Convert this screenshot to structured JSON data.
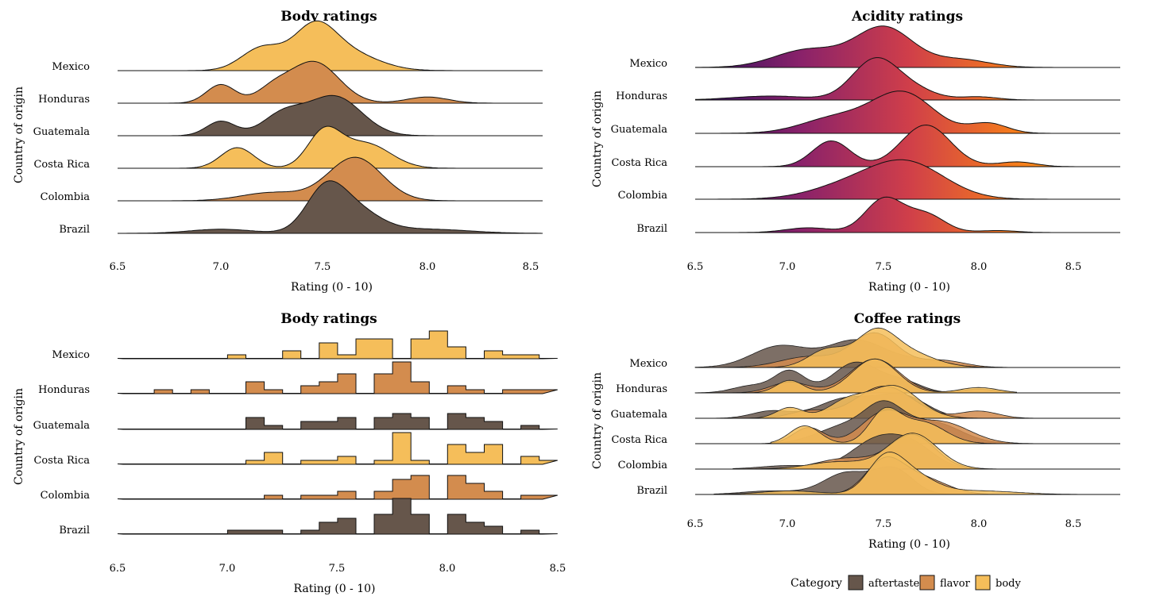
{
  "chart_data": [
    {
      "type": "ridgeline",
      "title": "Body ratings",
      "xlabel": "Rating (0 - 10)",
      "ylabel": "Country of origin",
      "xlim": [
        6.5,
        8.55
      ],
      "x_ticks": [
        "6.5",
        "7.0",
        "7.5",
        "8.0",
        "8.5"
      ],
      "categories": [
        "Mexico",
        "Honduras",
        "Guatemala",
        "Costa Rica",
        "Colombia",
        "Brazil"
      ],
      "fill_colors": [
        "#f5be5a",
        "#d38c4e",
        "#66564b",
        "#f5be5a",
        "#d38c4e",
        "#66564b"
      ],
      "series": [
        {
          "category": "Mexico",
          "peaks": [
            [
              7.2,
              0.1,
              0.55
            ],
            [
              7.45,
              0.1,
              0.9
            ],
            [
              7.6,
              0.15,
              0.45
            ]
          ],
          "range": [
            6.5,
            8.55
          ]
        },
        {
          "category": "Honduras",
          "peaks": [
            [
              7.0,
              0.07,
              0.45
            ],
            [
              7.45,
              0.12,
              1.0
            ],
            [
              7.25,
              0.08,
              0.3
            ],
            [
              8.0,
              0.1,
              0.15
            ]
          ],
          "range": [
            6.5,
            8.55
          ]
        },
        {
          "category": "Guatemala",
          "peaks": [
            [
              7.0,
              0.07,
              0.35
            ],
            [
              7.3,
              0.1,
              0.5
            ],
            [
              7.55,
              0.13,
              0.95
            ]
          ],
          "range": [
            6.5,
            8.55
          ]
        },
        {
          "category": "Costa Rica",
          "peaks": [
            [
              7.08,
              0.08,
              0.5
            ],
            [
              7.5,
              0.08,
              0.85
            ],
            [
              7.7,
              0.12,
              0.6
            ]
          ],
          "range": [
            6.5,
            8.55
          ]
        },
        {
          "category": "Colombia",
          "peaks": [
            [
              7.25,
              0.15,
              0.2
            ],
            [
              7.65,
              0.13,
              1.05
            ]
          ],
          "range": [
            6.5,
            8.55
          ]
        },
        {
          "category": "Brazil",
          "peaks": [
            [
              7.0,
              0.15,
              0.1
            ],
            [
              7.5,
              0.09,
              0.8
            ],
            [
              7.62,
              0.13,
              0.65
            ],
            [
              8.0,
              0.2,
              0.1
            ]
          ],
          "range": [
            6.5,
            8.55
          ]
        }
      ]
    },
    {
      "type": "ridgeline",
      "title": "Acidity ratings",
      "xlabel": "Rating (0 - 10)",
      "ylabel": "Country of origin",
      "xlim": [
        6.5,
        8.75
      ],
      "x_ticks": [
        "6.5",
        "7.0",
        "7.5",
        "8.0",
        "8.5"
      ],
      "categories": [
        "Mexico",
        "Honduras",
        "Guatemala",
        "Costa Rica",
        "Colombia",
        "Brazil"
      ],
      "gradient": [
        "#2d0f5e",
        "#8a226a",
        "#cf3e4a",
        "#f57c1c",
        "#f9a91a"
      ],
      "series": [
        {
          "category": "Mexico",
          "peaks": [
            [
              7.1,
              0.18,
              0.45
            ],
            [
              7.5,
              0.15,
              1.0
            ],
            [
              7.9,
              0.15,
              0.2
            ]
          ],
          "range": [
            6.5,
            8.75
          ]
        },
        {
          "category": "Honduras",
          "peaks": [
            [
              6.9,
              0.2,
              0.1
            ],
            [
              7.45,
              0.12,
              1.0
            ],
            [
              7.65,
              0.12,
              0.25
            ],
            [
              8.0,
              0.1,
              0.08
            ]
          ],
          "range": [
            6.5,
            8.75
          ]
        },
        {
          "category": "Guatemala",
          "peaks": [
            [
              7.25,
              0.18,
              0.4
            ],
            [
              7.6,
              0.16,
              1.0
            ],
            [
              8.05,
              0.1,
              0.25
            ]
          ],
          "range": [
            6.5,
            8.75
          ]
        },
        {
          "category": "Costa Rica",
          "peaks": [
            [
              7.22,
              0.1,
              0.65
            ],
            [
              7.72,
              0.13,
              1.05
            ],
            [
              8.2,
              0.1,
              0.12
            ]
          ],
          "range": [
            6.5,
            8.75
          ]
        },
        {
          "category": "Colombia",
          "peaks": [
            [
              7.3,
              0.2,
              0.3
            ],
            [
              7.62,
              0.2,
              0.9
            ]
          ],
          "range": [
            6.5,
            8.75
          ]
        },
        {
          "category": "Brazil",
          "peaks": [
            [
              7.1,
              0.12,
              0.12
            ],
            [
              7.5,
              0.1,
              0.85
            ],
            [
              7.72,
              0.1,
              0.45
            ],
            [
              8.1,
              0.1,
              0.05
            ]
          ],
          "range": [
            6.5,
            8.75
          ]
        }
      ]
    },
    {
      "type": "ridgeline-histogram",
      "title": "Body ratings",
      "xlabel": "Rating (0 - 10)",
      "ylabel": "Country of origin",
      "xlim": [
        6.5,
        8.5
      ],
      "x_ticks": [
        "6.5",
        "7.0",
        "7.5",
        "8.0",
        "8.5"
      ],
      "bin_start": 6.5,
      "bin_width": 0.0833,
      "categories": [
        "Mexico",
        "Honduras",
        "Guatemala",
        "Costa Rica",
        "Colombia",
        "Brazil"
      ],
      "fill_colors": [
        "#f5be5a",
        "#d38c4e",
        "#66564b",
        "#f5be5a",
        "#d38c4e",
        "#66564b"
      ],
      "series": [
        {
          "category": "Mexico",
          "counts": [
            0,
            0,
            0,
            0,
            0,
            0,
            1,
            0,
            0,
            2,
            0,
            4,
            1,
            5,
            5,
            0,
            5,
            7,
            3,
            0,
            2,
            1,
            1,
            0
          ]
        },
        {
          "category": "Honduras",
          "counts": [
            0,
            0,
            1,
            0,
            1,
            0,
            0,
            3,
            1,
            0,
            2,
            3,
            5,
            0,
            5,
            8,
            3,
            0,
            2,
            1,
            0,
            1,
            1,
            1
          ]
        },
        {
          "category": "Guatemala",
          "counts": [
            0,
            0,
            0,
            0,
            0,
            0,
            0,
            3,
            1,
            0,
            2,
            2,
            3,
            0,
            3,
            4,
            3,
            0,
            4,
            3,
            2,
            0,
            1,
            0
          ]
        },
        {
          "category": "Costa Rica",
          "counts": [
            0,
            0,
            0,
            0,
            0,
            0,
            0,
            1,
            3,
            0,
            1,
            1,
            2,
            0,
            1,
            8,
            1,
            0,
            5,
            3,
            5,
            0,
            2,
            1
          ]
        },
        {
          "category": "Colombia",
          "counts": [
            0,
            0,
            0,
            0,
            0,
            0,
            0,
            0,
            1,
            0,
            1,
            1,
            2,
            0,
            2,
            5,
            6,
            0,
            6,
            4,
            2,
            0,
            1,
            1
          ]
        },
        {
          "category": "Brazil",
          "counts": [
            0,
            0,
            0,
            0,
            0,
            0,
            1,
            1,
            1,
            0,
            1,
            3,
            4,
            0,
            5,
            9,
            5,
            0,
            5,
            3,
            2,
            0,
            1,
            0
          ]
        }
      ]
    },
    {
      "type": "ridgeline",
      "title": "Coffee ratings",
      "xlabel": "Rating (0 - 10)",
      "ylabel": "Country of origin",
      "xlim": [
        6.5,
        8.75
      ],
      "x_ticks": [
        "6.5",
        "7.0",
        "7.5",
        "8.0",
        "8.5"
      ],
      "categories": [
        "Mexico",
        "Honduras",
        "Guatemala",
        "Costa Rica",
        "Colombia",
        "Brazil"
      ],
      "legend": {
        "title": "Category",
        "position": "bottom"
      },
      "groups": [
        {
          "name": "aftertaste",
          "color": "#66564b"
        },
        {
          "name": "flavor",
          "color": "#d38c4e"
        },
        {
          "name": "body",
          "color": "#f5be5a"
        }
      ],
      "series": [
        {
          "category": "Mexico",
          "group": "aftertaste",
          "peaks": [
            [
              6.95,
              0.15,
              0.6
            ],
            [
              7.35,
              0.15,
              0.75
            ],
            [
              7.7,
              0.15,
              0.2
            ]
          ],
          "range": [
            6.5,
            8.3
          ]
        },
        {
          "category": "Mexico",
          "group": "flavor",
          "peaks": [
            [
              7.1,
              0.15,
              0.3
            ],
            [
              7.45,
              0.12,
              0.95
            ],
            [
              7.8,
              0.12,
              0.2
            ]
          ],
          "range": [
            6.5,
            8.3
          ]
        },
        {
          "category": "Mexico",
          "group": "body",
          "peaks": [
            [
              7.2,
              0.1,
              0.5
            ],
            [
              7.45,
              0.1,
              0.8
            ],
            [
              7.6,
              0.15,
              0.45
            ]
          ],
          "range": [
            6.7,
            8.1
          ]
        },
        {
          "category": "Honduras",
          "group": "aftertaste",
          "peaks": [
            [
              6.8,
              0.1,
              0.2
            ],
            [
              7.0,
              0.08,
              0.6
            ],
            [
              7.35,
              0.12,
              0.85
            ],
            [
              7.6,
              0.1,
              0.3
            ]
          ],
          "range": [
            6.5,
            8.0
          ]
        },
        {
          "category": "Honduras",
          "group": "flavor",
          "peaks": [
            [
              7.0,
              0.1,
              0.3
            ],
            [
              7.45,
              0.13,
              0.95
            ],
            [
              8.0,
              0.1,
              0.1
            ]
          ],
          "range": [
            6.5,
            8.2
          ]
        },
        {
          "category": "Honduras",
          "group": "body",
          "peaks": [
            [
              7.0,
              0.07,
              0.35
            ],
            [
              7.45,
              0.12,
              0.95
            ],
            [
              8.0,
              0.1,
              0.15
            ]
          ],
          "range": [
            6.5,
            8.2
          ]
        },
        {
          "category": "Guatemala",
          "group": "aftertaste",
          "peaks": [
            [
              6.9,
              0.1,
              0.2
            ],
            [
              7.3,
              0.15,
              0.55
            ],
            [
              7.6,
              0.13,
              0.6
            ]
          ],
          "range": [
            6.5,
            8.2
          ]
        },
        {
          "category": "Guatemala",
          "group": "flavor",
          "peaks": [
            [
              7.1,
              0.1,
              0.2
            ],
            [
              7.5,
              0.15,
              0.9
            ],
            [
              8.0,
              0.1,
              0.2
            ]
          ],
          "range": [
            6.5,
            8.35
          ]
        },
        {
          "category": "Guatemala",
          "group": "body",
          "peaks": [
            [
              7.0,
              0.07,
              0.3
            ],
            [
              7.3,
              0.1,
              0.45
            ],
            [
              7.55,
              0.13,
              0.9
            ]
          ],
          "range": [
            6.5,
            8.3
          ]
        },
        {
          "category": "Costa Rica",
          "group": "aftertaste",
          "peaks": [
            [
              7.3,
              0.15,
              0.5
            ],
            [
              7.5,
              0.1,
              0.85
            ],
            [
              7.75,
              0.15,
              0.6
            ]
          ],
          "range": [
            6.9,
            8.2
          ]
        },
        {
          "category": "Costa Rica",
          "group": "flavor",
          "peaks": [
            [
              7.1,
              0.08,
              0.45
            ],
            [
              7.5,
              0.12,
              0.85
            ],
            [
              7.8,
              0.15,
              0.6
            ]
          ],
          "range": [
            6.5,
            8.35
          ]
        },
        {
          "category": "Costa Rica",
          "group": "body",
          "peaks": [
            [
              7.08,
              0.08,
              0.5
            ],
            [
              7.5,
              0.08,
              0.85
            ],
            [
              7.7,
              0.12,
              0.6
            ]
          ],
          "range": [
            6.9,
            8.2
          ]
        },
        {
          "category": "Colombia",
          "group": "aftertaste",
          "peaks": [
            [
              7.0,
              0.15,
              0.1
            ],
            [
              7.45,
              0.13,
              0.75
            ],
            [
              7.65,
              0.12,
              0.6
            ]
          ],
          "range": [
            6.7,
            8.2
          ]
        },
        {
          "category": "Colombia",
          "group": "flavor",
          "peaks": [
            [
              7.3,
              0.15,
              0.3
            ],
            [
              7.65,
              0.12,
              0.95
            ]
          ],
          "range": [
            6.7,
            8.2
          ]
        },
        {
          "category": "Colombia",
          "group": "body",
          "peaks": [
            [
              7.25,
              0.15,
              0.2
            ],
            [
              7.65,
              0.13,
              1.0
            ]
          ],
          "range": [
            6.7,
            8.2
          ]
        },
        {
          "category": "Brazil",
          "group": "aftertaste",
          "peaks": [
            [
              6.9,
              0.15,
              0.1
            ],
            [
              7.3,
              0.12,
              0.6
            ],
            [
              7.55,
              0.1,
              0.7
            ]
          ],
          "range": [
            6.6,
            8.55
          ]
        },
        {
          "category": "Brazil",
          "group": "flavor",
          "peaks": [
            [
              7.5,
              0.1,
              0.9
            ],
            [
              7.7,
              0.13,
              0.45
            ]
          ],
          "range": [
            6.6,
            8.55
          ]
        },
        {
          "category": "Brazil",
          "group": "body",
          "peaks": [
            [
              7.0,
              0.15,
              0.1
            ],
            [
              7.5,
              0.09,
              0.75
            ],
            [
              7.62,
              0.13,
              0.6
            ],
            [
              8.0,
              0.2,
              0.1
            ]
          ],
          "range": [
            6.6,
            8.55
          ]
        }
      ]
    }
  ]
}
